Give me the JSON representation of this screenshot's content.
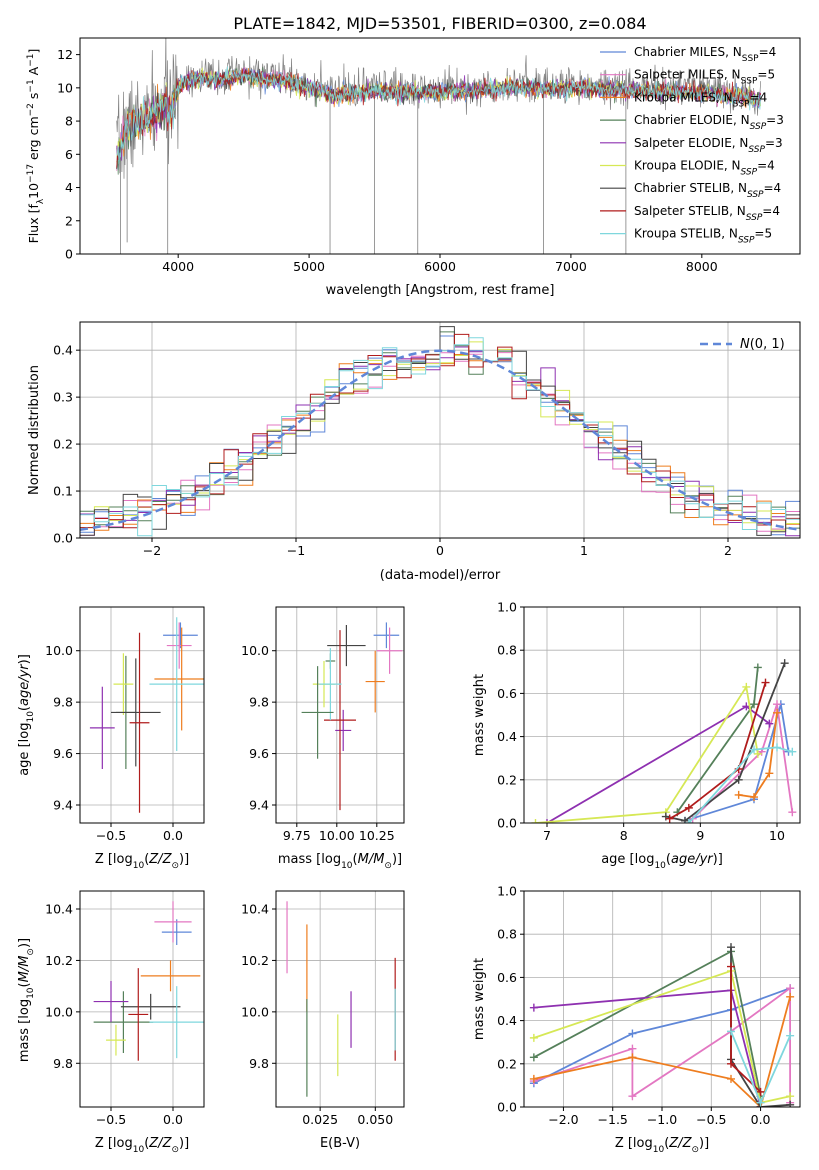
{
  "figure_title": "PLATE=1842, MJD=53501, FIBERID=0300, z=0.084",
  "models": [
    {
      "name": "Chabrier MILES",
      "nssp": "4",
      "color": "#5f87d8"
    },
    {
      "name": "Salpeter MILES",
      "nssp": "5",
      "color": "#e377c2"
    },
    {
      "name": "Kroupa MILES",
      "nssp": "4",
      "color": "#ee7d1f"
    },
    {
      "name": "Chabrier ELODIE",
      "nssp": "3",
      "color": "#55805a"
    },
    {
      "name": "Salpeter ELODIE",
      "nssp": "3",
      "color": "#8e30b0"
    },
    {
      "name": "Kroupa ELODIE",
      "nssp": "4",
      "color": "#d6e855"
    },
    {
      "name": "Chabrier STELIB",
      "nssp": "4",
      "color": "#444444"
    },
    {
      "name": "Salpeter STELIB",
      "nssp": "4",
      "color": "#b01c1c"
    },
    {
      "name": "Kroupa STELIB",
      "nssp": "5",
      "color": "#7fd7dd"
    }
  ],
  "chart_data": [
    {
      "id": "spectrum",
      "type": "line",
      "xlabel": "wavelength [Angstrom, rest frame]",
      "ylabel": "Flux [f_λ 10^-17 erg cm^-2 s^-1 A^-1]",
      "xlim": [
        3250,
        8750
      ],
      "ylim": [
        0,
        13
      ],
      "xticks": [
        4000,
        5000,
        6000,
        7000,
        8000
      ],
      "yticks": [
        0,
        2,
        4,
        6,
        8,
        10,
        12
      ],
      "grid": false,
      "legend": "top-right",
      "data_color": "#808080",
      "data_range": [
        3530,
        8450
      ],
      "anchors": [
        [
          3530,
          6.0
        ],
        [
          3600,
          7.6
        ],
        [
          3700,
          8.1
        ],
        [
          3800,
          8.5
        ],
        [
          3900,
          9.2
        ],
        [
          3950,
          8.7
        ],
        [
          4000,
          10.3
        ],
        [
          4100,
          10.8
        ],
        [
          4300,
          10.7
        ],
        [
          4500,
          10.9
        ],
        [
          4800,
          10.6
        ],
        [
          5000,
          10.2
        ],
        [
          5200,
          9.7
        ],
        [
          5500,
          10.0
        ],
        [
          5800,
          9.9
        ],
        [
          6100,
          10.0
        ],
        [
          6400,
          10.1
        ],
        [
          6600,
          10.3
        ],
        [
          6800,
          10.1
        ],
        [
          7000,
          10.2
        ],
        [
          7300,
          10.1
        ],
        [
          7600,
          10.0
        ],
        [
          8000,
          9.9
        ],
        [
          8450,
          9.5
        ]
      ],
      "spikes": [
        {
          "x": 3560,
          "y": 0.0
        },
        {
          "x": 3610,
          "y": 0.7
        },
        {
          "x": 3920,
          "y": 0.0
        },
        {
          "x": 5160,
          "y": 0.0
        },
        {
          "x": 5500,
          "y": 0.0
        },
        {
          "x": 5830,
          "y": 0.0
        },
        {
          "x": 6790,
          "y": 0.0
        },
        {
          "x": 7420,
          "y": 0.0
        }
      ]
    },
    {
      "id": "residual-histogram",
      "type": "line",
      "xlabel": "(data-model)/error",
      "ylabel": "Normed distribution",
      "xlim": [
        -2.5,
        2.5
      ],
      "ylim": [
        0,
        0.46
      ],
      "xticks": [
        -2,
        -1,
        0,
        1,
        2
      ],
      "yticks": [
        0.0,
        0.1,
        0.2,
        0.3,
        0.4
      ],
      "grid": true,
      "legend": "top-right",
      "bin_width": 0.1,
      "series": [
        {
          "name": "N(0,1)",
          "style": "dashed",
          "color": "#5f87d8",
          "function": "gaussian",
          "mean": 0,
          "sigma": 1
        }
      ]
    },
    {
      "id": "age-vs-Z",
      "type": "scatter",
      "xlabel": "Z [log10(Z/Z_sun)]",
      "ylabel": "age [log10(age/yr)]",
      "xlim": [
        -0.75,
        0.25
      ],
      "ylim": [
        9.33,
        10.17
      ],
      "xticks": [
        -0.5,
        0.0
      ],
      "yticks": [
        9.4,
        9.6,
        9.8,
        10.0
      ],
      "grid": true,
      "points": [
        {
          "model": "Chabrier MILES",
          "x": 0.06,
          "y": 10.06,
          "xerr": 0.14,
          "yerr": 0.05
        },
        {
          "model": "Salpeter MILES",
          "x": 0.05,
          "y": 10.02,
          "xerr": 0.1,
          "yerr": 0.09
        },
        {
          "model": "Kroupa MILES",
          "x": 0.07,
          "y": 9.89,
          "xerr": 0.22,
          "yerr": 0.2
        },
        {
          "model": "Chabrier ELODIE",
          "x": -0.38,
          "y": 9.76,
          "xerr": 0.08,
          "yerr": 0.22
        },
        {
          "model": "Salpeter ELODIE",
          "x": -0.57,
          "y": 9.7,
          "xerr": 0.1,
          "yerr": 0.16
        },
        {
          "model": "Kroupa ELODIE",
          "x": -0.4,
          "y": 9.87,
          "xerr": 0.08,
          "yerr": 0.12
        },
        {
          "model": "Chabrier STELIB",
          "x": -0.3,
          "y": 9.76,
          "xerr": 0.2,
          "yerr": 0.21
        },
        {
          "model": "Salpeter STELIB",
          "x": -0.27,
          "y": 9.72,
          "xerr": 0.08,
          "yerr": 0.35
        },
        {
          "model": "Kroupa STELIB",
          "x": 0.03,
          "y": 9.87,
          "xerr": 0.22,
          "yerr": 0.26
        }
      ]
    },
    {
      "id": "age-vs-mass",
      "type": "scatter",
      "xlabel": "mass [log10(M/M_sun)]",
      "ylabel": "",
      "xlim": [
        9.62,
        10.42
      ],
      "ylim": [
        9.33,
        10.17
      ],
      "xticks": [
        9.75,
        10.0,
        10.25
      ],
      "xtick_labels": [
        "9.75",
        "10.00",
        "10.25"
      ],
      "yticks": [
        9.4,
        9.6,
        9.8,
        10.0
      ],
      "grid": true,
      "points": [
        {
          "model": "Chabrier MILES",
          "x": 10.31,
          "y": 10.06,
          "xerr": 0.08,
          "yerr": 0.05
        },
        {
          "model": "Salpeter MILES",
          "x": 10.33,
          "y": 10.0,
          "xerr": 0.08,
          "yerr": 0.09
        },
        {
          "model": "Kroupa MILES",
          "x": 10.24,
          "y": 9.88,
          "xerr": 0.06,
          "yerr": 0.12
        },
        {
          "model": "Chabrier ELODIE",
          "x": 9.96,
          "y": 9.96,
          "xerr": 0.03,
          "yerr": 0.03
        },
        {
          "model": "Salpeter ELODIE",
          "x": 10.04,
          "y": 9.69,
          "xerr": 0.05,
          "yerr": 0.08
        },
        {
          "model": "Kroupa ELODIE",
          "x": 9.92,
          "y": 9.87,
          "xerr": 0.07,
          "yerr": 0.09
        },
        {
          "model": "Chabrier STELIB",
          "x": 10.06,
          "y": 10.02,
          "xerr": 0.12,
          "yerr": 0.08
        },
        {
          "model": "Salpeter STELIB",
          "x": 10.02,
          "y": 9.73,
          "xerr": 0.1,
          "yerr": 0.35
        },
        {
          "model": "Kroupa STELIB",
          "x": 9.96,
          "y": 9.87,
          "xerr": 0.07,
          "yerr": 0.14
        },
        {
          "model": "Chabrier ELODIE",
          "x": 9.88,
          "y": 9.76,
          "xerr": 0.1,
          "yerr": 0.18
        }
      ]
    },
    {
      "id": "mass-weight-vs-age",
      "type": "line",
      "xlabel": "age [log10(age/yr)]",
      "ylabel": "mass weight",
      "xlim": [
        6.7,
        10.3
      ],
      "ylim": [
        0,
        1.0
      ],
      "xticks": [
        7,
        8,
        9,
        10
      ],
      "yticks": [
        0.0,
        0.2,
        0.4,
        0.6,
        0.8,
        1.0
      ],
      "grid": true,
      "series": [
        {
          "name": "Chabrier MILES",
          "x": [
            8.8,
            9.7,
            10.05,
            10.15
          ],
          "y": [
            0.01,
            0.11,
            0.55,
            0.33
          ]
        },
        {
          "name": "Salpeter MILES",
          "x": [
            8.9,
            9.8,
            10.0,
            10.2
          ],
          "y": [
            0.02,
            0.33,
            0.55,
            0.05
          ]
        },
        {
          "name": "Kroupa MILES",
          "x": [
            9.5,
            9.7,
            9.9,
            10.0
          ],
          "y": [
            0.13,
            0.12,
            0.23,
            0.51
          ]
        },
        {
          "name": "Chabrier ELODIE",
          "x": [
            8.7,
            9.7,
            9.75
          ],
          "y": [
            0.05,
            0.55,
            0.72
          ]
        },
        {
          "name": "Salpeter ELODIE",
          "x": [
            7.0,
            9.6,
            9.9
          ],
          "y": [
            0.0,
            0.54,
            0.46
          ]
        },
        {
          "name": "Kroupa ELODIE",
          "x": [
            6.85,
            8.55,
            9.6,
            9.75
          ],
          "y": [
            0.0,
            0.05,
            0.63,
            0.32
          ]
        },
        {
          "name": "Chabrier STELIB",
          "x": [
            8.55,
            8.8,
            9.5,
            10.1
          ],
          "y": [
            0.03,
            0.01,
            0.2,
            0.74
          ]
        },
        {
          "name": "Salpeter STELIB",
          "x": [
            8.6,
            8.85,
            9.5,
            9.85
          ],
          "y": [
            0.02,
            0.07,
            0.25,
            0.65
          ]
        },
        {
          "name": "Kroupa STELIB",
          "x": [
            8.85,
            9.7,
            10.0,
            10.2
          ],
          "y": [
            0.0,
            0.34,
            0.35,
            0.33
          ]
        }
      ]
    },
    {
      "id": "mass-vs-Z",
      "type": "scatter",
      "xlabel": "Z [log10(Z/Z_sun)]",
      "ylabel": "mass [log10(M/M_sun)]",
      "xlim": [
        -0.75,
        0.25
      ],
      "ylim": [
        9.63,
        10.47
      ],
      "xticks": [
        -0.5,
        0.0
      ],
      "yticks": [
        9.8,
        10.0,
        10.2,
        10.4
      ],
      "grid": true,
      "points": [
        {
          "model": "Chabrier MILES",
          "x": 0.03,
          "y": 10.31,
          "xerr": 0.12,
          "yerr": 0.05
        },
        {
          "model": "Salpeter MILES",
          "x": 0.0,
          "y": 10.35,
          "xerr": 0.15,
          "yerr": 0.08
        },
        {
          "model": "Kroupa MILES",
          "x": -0.02,
          "y": 10.14,
          "xerr": 0.24,
          "yerr": 0.06
        },
        {
          "model": "Chabrier ELODIE",
          "x": -0.4,
          "y": 9.96,
          "xerr": 0.24,
          "yerr": 0.12
        },
        {
          "model": "Salpeter ELODIE",
          "x": -0.5,
          "y": 10.04,
          "xerr": 0.14,
          "yerr": 0.08
        },
        {
          "model": "Kroupa ELODIE",
          "x": -0.46,
          "y": 9.89,
          "xerr": 0.08,
          "yerr": 0.06
        },
        {
          "model": "Chabrier STELIB",
          "x": -0.18,
          "y": 10.02,
          "xerr": 0.24,
          "yerr": 0.05
        },
        {
          "model": "Salpeter STELIB",
          "x": -0.28,
          "y": 9.99,
          "xerr": 0.08,
          "yerr": 0.18
        },
        {
          "model": "Kroupa STELIB",
          "x": 0.03,
          "y": 9.96,
          "xerr": 0.22,
          "yerr": 0.14
        }
      ]
    },
    {
      "id": "mass-vs-EBV",
      "type": "scatter",
      "xlabel": "E(B-V)",
      "ylabel": "",
      "xlim": [
        0.005,
        0.063
      ],
      "ylim": [
        9.63,
        10.47
      ],
      "xticks": [
        0.025,
        0.05
      ],
      "xtick_labels": [
        "0.025",
        "0.050"
      ],
      "yticks": [
        9.8,
        10.0,
        10.2,
        10.4
      ],
      "grid": true,
      "points": [
        {
          "model": "Salpeter MILES",
          "x": 0.01,
          "y": 10.29,
          "xerr": 0.0,
          "yerr": 0.14
        },
        {
          "model": "Kroupa MILES",
          "x": 0.019,
          "y": 10.17,
          "xerr": 0.0,
          "yerr": 0.17
        },
        {
          "model": "Chabrier ELODIE",
          "x": 0.019,
          "y": 9.86,
          "xerr": 0.0,
          "yerr": 0.19
        },
        {
          "model": "Kroupa ELODIE",
          "x": 0.033,
          "y": 9.87,
          "xerr": 0.0,
          "yerr": 0.12
        },
        {
          "model": "Salpeter ELODIE",
          "x": 0.039,
          "y": 9.97,
          "xerr": 0.0,
          "yerr": 0.11
        },
        {
          "model": "Salpeter STELIB",
          "x": 0.059,
          "y": 10.01,
          "xerr": 0.0,
          "yerr": 0.2
        },
        {
          "model": "Kroupa STELIB",
          "x": 0.059,
          "y": 9.97,
          "xerr": 0.0,
          "yerr": 0.12
        }
      ]
    },
    {
      "id": "mass-weight-vs-Z",
      "type": "line",
      "xlabel": "Z [log10(Z/Z_sun)]",
      "ylabel": "mass weight",
      "xlim": [
        -2.4,
        0.4
      ],
      "ylim": [
        0,
        1.0
      ],
      "xticks": [
        -2.0,
        -1.5,
        -1.0,
        -0.5,
        0.0
      ],
      "yticks": [
        0.0,
        0.2,
        0.4,
        0.6,
        0.8,
        1.0
      ],
      "grid": true,
      "series": [
        {
          "name": "Chabrier MILES",
          "x": [
            -2.3,
            -1.3,
            -0.3,
            0.3
          ],
          "y": [
            0.11,
            0.34,
            0.45,
            0.55
          ]
        },
        {
          "name": "Salpeter MILES",
          "x": [
            -2.3,
            -1.3,
            -1.3,
            -0.3,
            0.3,
            0.3
          ],
          "y": [
            0.12,
            0.27,
            0.05,
            0.35,
            0.55,
            0.02
          ]
        },
        {
          "name": "Kroupa MILES",
          "x": [
            -2.3,
            -1.3,
            -0.3,
            0.0,
            0.3
          ],
          "y": [
            0.13,
            0.23,
            0.13,
            0.0,
            0.51
          ]
        },
        {
          "name": "Chabrier ELODIE",
          "x": [
            -2.3,
            -0.3,
            0.0
          ],
          "y": [
            0.23,
            0.72,
            0.05
          ]
        },
        {
          "name": "Salpeter ELODIE",
          "x": [
            -2.3,
            -0.3,
            0.0
          ],
          "y": [
            0.46,
            0.54,
            0.0
          ]
        },
        {
          "name": "Kroupa ELODIE",
          "x": [
            -2.3,
            -0.3,
            0.0,
            0.3
          ],
          "y": [
            0.32,
            0.63,
            0.02,
            0.05
          ]
        },
        {
          "name": "Chabrier STELIB",
          "x": [
            -0.3,
            -0.3,
            0.0,
            0.3
          ],
          "y": [
            0.74,
            0.22,
            0.0,
            0.01
          ]
        },
        {
          "name": "Salpeter STELIB",
          "x": [
            -0.3,
            -0.3,
            0.0
          ],
          "y": [
            0.65,
            0.2,
            0.07
          ]
        },
        {
          "name": "Kroupa STELIB",
          "x": [
            -0.3,
            0.0,
            0.3
          ],
          "y": [
            0.35,
            0.02,
            0.33
          ]
        }
      ]
    }
  ]
}
